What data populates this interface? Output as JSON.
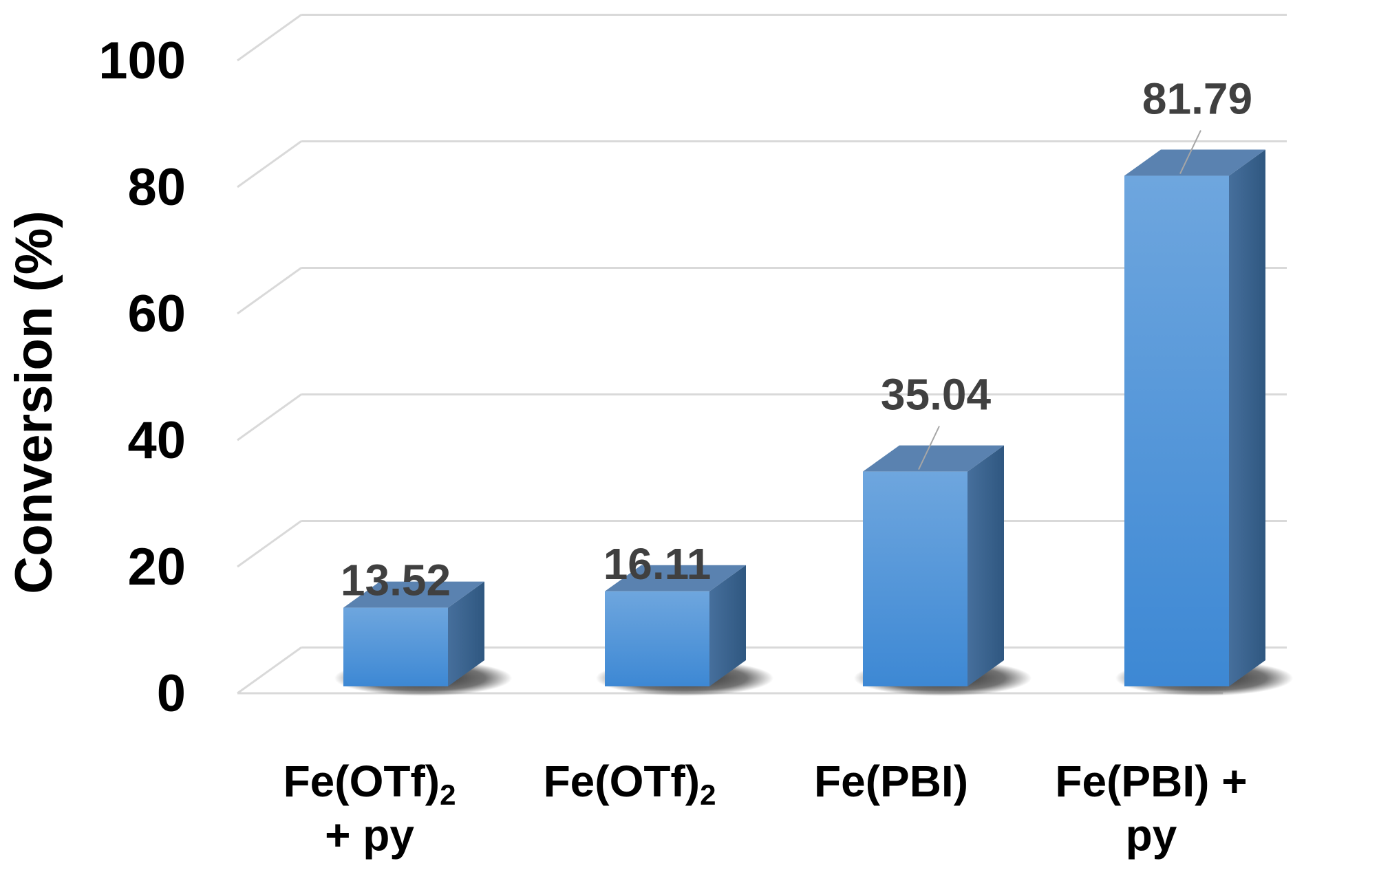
{
  "chart_data": {
    "type": "bar",
    "style": "3d-column",
    "ylabel": "Conversion (%)",
    "xlabel": "",
    "ylim": [
      0,
      100
    ],
    "yticks": [
      0,
      20,
      40,
      60,
      80,
      100
    ],
    "grid": true,
    "legend": "none",
    "categories": [
      {
        "label_lines": [
          "Fe(OTf)",
          "+ py"
        ],
        "subscript": "2"
      },
      {
        "label_lines": [
          "Fe(OTf)"
        ],
        "subscript": "2"
      },
      {
        "label_lines": [
          "Fe(PBI)"
        ],
        "subscript": ""
      },
      {
        "label_lines": [
          "Fe(PBI) +",
          "py"
        ],
        "subscript": ""
      }
    ],
    "values": [
      13.52,
      16.11,
      35.04,
      81.79
    ],
    "data_labels": [
      "13.52",
      "16.11",
      "35.04",
      "81.79"
    ],
    "colors": {
      "bar_front_top": "#6ea6de",
      "bar_front_bottom": "#3d88d4",
      "bar_top": "#5a82b0",
      "bar_side": "#3a638f",
      "gridline": "#d9d9d9",
      "leader_line": "#a6a6a6",
      "data_label": "#404040",
      "text": "#000000"
    }
  }
}
